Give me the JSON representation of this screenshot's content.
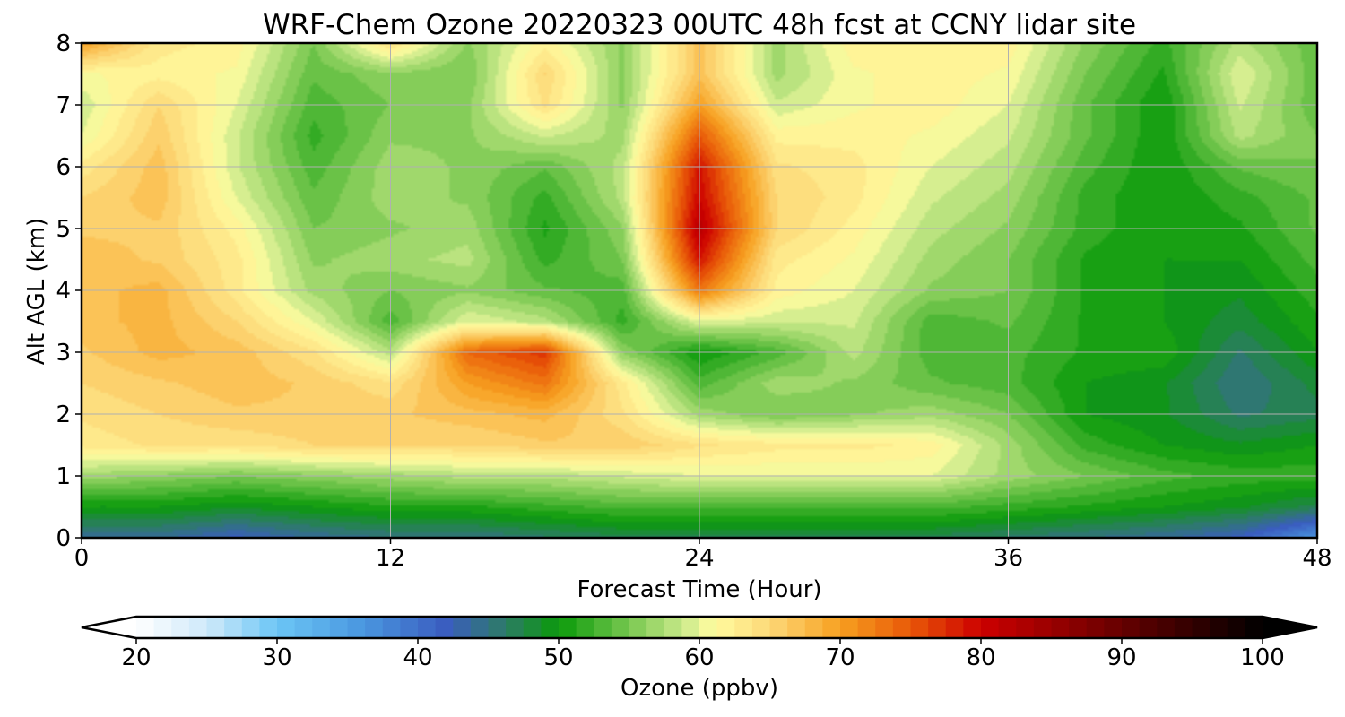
{
  "chart_data": {
    "type": "heatmap",
    "title": "WRF-Chem Ozone  20220323 00UTC 48h fcst at CCNY lidar site",
    "xlabel": "Forecast Time (Hour)",
    "ylabel": "Alt AGL (km)",
    "xlim": [
      0,
      48
    ],
    "ylim": [
      0,
      8
    ],
    "xticks": [
      0,
      12,
      24,
      36,
      48
    ],
    "yticks": [
      0,
      1,
      2,
      3,
      4,
      5,
      6,
      7,
      8
    ],
    "grid": true,
    "colorbar": {
      "label": "Ozone  (ppbv)",
      "range": [
        20,
        100
      ],
      "ticks": [
        20,
        30,
        40,
        50,
        60,
        70,
        80,
        90,
        100
      ],
      "extend": "both",
      "colors": [
        {
          "value": 20,
          "color": "#ffffff"
        },
        {
          "value": 25,
          "color": "#cfe9fa"
        },
        {
          "value": 30,
          "color": "#6cc6f5"
        },
        {
          "value": 36,
          "color": "#4a97e0"
        },
        {
          "value": 42,
          "color": "#3a5dbf"
        },
        {
          "value": 46,
          "color": "#2e7a6a"
        },
        {
          "value": 50,
          "color": "#0a9a0a"
        },
        {
          "value": 55,
          "color": "#78c850"
        },
        {
          "value": 59,
          "color": "#cdeb8c"
        },
        {
          "value": 61,
          "color": "#fffca0"
        },
        {
          "value": 65,
          "color": "#fdd878"
        },
        {
          "value": 70,
          "color": "#f7a020"
        },
        {
          "value": 75,
          "color": "#e85808"
        },
        {
          "value": 80,
          "color": "#cc0000"
        },
        {
          "value": 85,
          "color": "#9a0000"
        },
        {
          "value": 92,
          "color": "#500000"
        },
        {
          "value": 100,
          "color": "#000000"
        }
      ]
    },
    "x": [
      0,
      3,
      6,
      9,
      12,
      15,
      18,
      21,
      24,
      27,
      30,
      33,
      36,
      39,
      42,
      45,
      48
    ],
    "y": [
      0,
      0.5,
      1,
      1.5,
      2,
      2.5,
      3,
      3.5,
      4,
      4.5,
      5,
      5.5,
      6,
      6.5,
      7,
      7.5,
      8
    ],
    "z": [
      [
        44,
        44,
        42,
        44,
        45,
        45,
        46,
        47,
        47,
        47,
        47,
        47,
        46,
        45,
        44,
        42,
        36
      ],
      [
        50,
        50,
        49,
        50,
        51,
        51,
        52,
        53,
        53,
        53,
        53,
        53,
        52,
        51,
        50,
        49,
        47
      ],
      [
        57,
        56,
        55,
        56,
        57,
        58,
        58,
        59,
        60,
        60,
        60,
        60,
        57,
        55,
        53,
        52,
        52
      ],
      [
        63,
        64,
        64,
        65,
        65,
        65,
        66,
        66,
        64,
        63,
        63,
        62,
        57,
        52,
        50,
        49,
        50
      ],
      [
        64,
        65,
        66,
        66,
        66,
        67,
        68,
        64,
        57,
        55,
        56,
        57,
        55,
        50,
        49,
        46,
        47
      ],
      [
        65,
        66,
        67,
        66,
        64,
        70,
        73,
        63,
        53,
        57,
        56,
        54,
        53,
        50,
        49,
        45,
        48
      ],
      [
        66,
        68,
        67,
        64,
        58,
        74,
        77,
        56,
        50,
        53,
        58,
        53,
        53,
        51,
        51,
        46,
        50
      ],
      [
        67,
        68,
        65,
        60,
        53,
        60,
        58,
        52,
        60,
        59,
        59,
        53,
        54,
        51,
        50,
        48,
        51
      ],
      [
        67,
        68,
        63,
        57,
        55,
        56,
        54,
        53,
        73,
        62,
        60,
        56,
        55,
        51,
        50,
        49,
        52
      ],
      [
        67,
        66,
        63,
        56,
        57,
        58,
        52,
        55,
        79,
        63,
        61,
        57,
        55,
        51,
        50,
        50,
        53
      ],
      [
        66,
        66,
        62,
        55,
        56,
        57,
        51,
        56,
        82,
        65,
        62,
        58,
        56,
        52,
        50,
        51,
        54
      ],
      [
        65,
        67,
        60,
        54,
        57,
        56,
        52,
        58,
        80,
        65,
        63,
        59,
        57,
        52,
        50,
        52,
        54
      ],
      [
        63,
        67,
        59,
        53,
        57,
        56,
        54,
        58,
        79,
        64,
        63,
        60,
        58,
        53,
        50,
        54,
        55
      ],
      [
        60,
        66,
        59,
        52,
        56,
        56,
        59,
        57,
        75,
        62,
        62,
        61,
        59,
        54,
        50,
        58,
        55
      ],
      [
        59,
        65,
        60,
        53,
        55,
        56,
        64,
        56,
        70,
        59,
        61,
        62,
        60,
        54,
        50,
        59,
        54
      ],
      [
        61,
        62,
        61,
        54,
        56,
        55,
        65,
        56,
        67,
        57,
        61,
        62,
        61,
        55,
        51,
        60,
        54
      ],
      [
        70,
        63,
        62,
        55,
        64,
        56,
        62,
        56,
        67,
        57,
        62,
        62,
        62,
        56,
        52,
        58,
        54
      ]
    ]
  }
}
